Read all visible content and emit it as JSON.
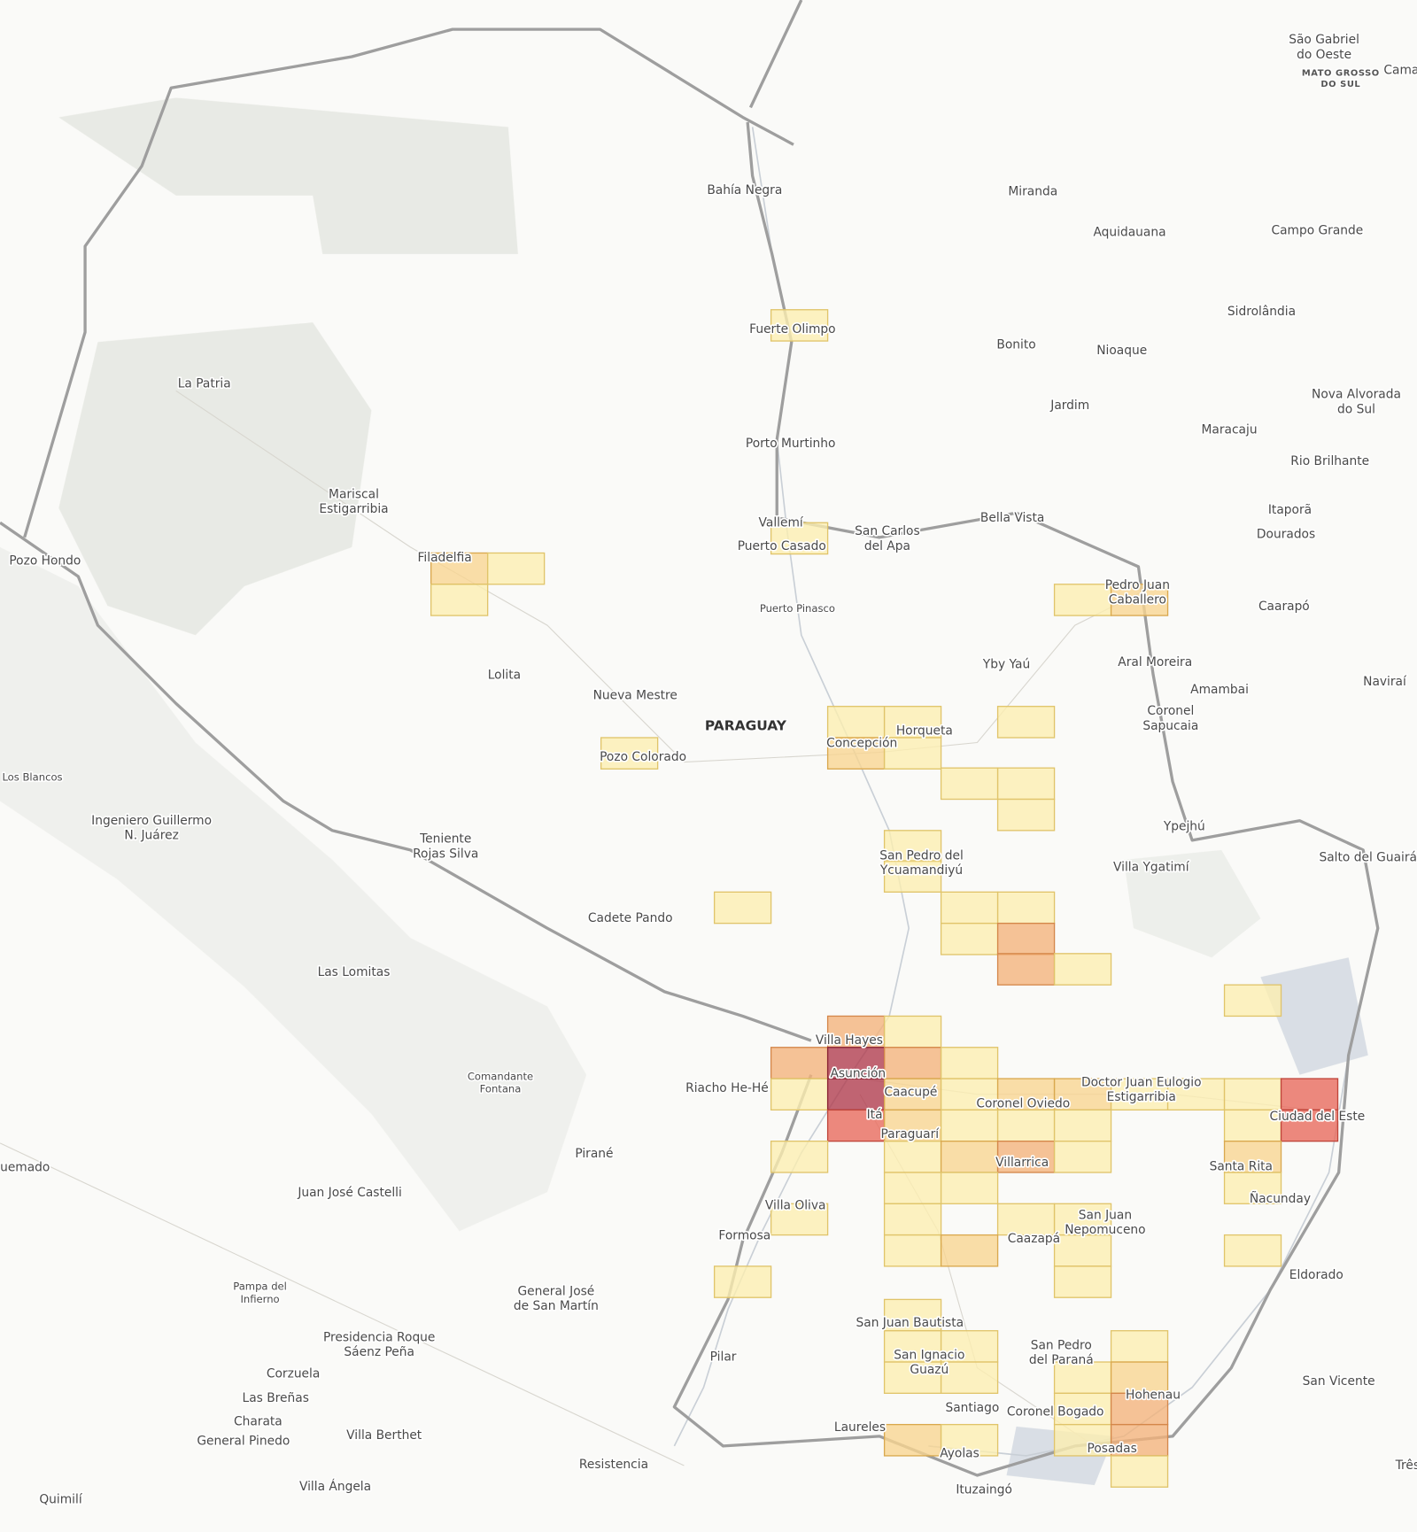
{
  "labels": [
    [
      "São Gabriel",
      "do Oeste"
    ],
    [
      "MATO GROSSO",
      "DO SUL"
    ],
    "Cama",
    "Bahía Negra",
    "Miranda",
    "Aquidauana",
    "Campo Grande",
    "Sidrolândia",
    "Fuerte Olimpo",
    "Bonito",
    "Nioaque",
    "La Patria",
    [
      "Nova Alvorada",
      "do Sul"
    ],
    "Jardim",
    "Maracaju",
    "Porto Murtinho",
    "Rio Brilhante",
    [
      "Mariscal",
      "Estigarribia"
    ],
    "Itaporã",
    "Vallemí",
    [
      "San Carlos",
      "del Apa"
    ],
    "Bella Vista",
    "Puerto Casado",
    "Dourados",
    "Pozo Hondo",
    "Filadelfia",
    [
      "Pedro Juan",
      "Caballero"
    ],
    "Caarapó",
    "Puerto Pinasco",
    "Yby Yaú",
    "Aral Moreira",
    "Lolita",
    "Amambai",
    "Naviraí",
    "Nueva Mestre",
    "PARAGUAY",
    [
      "Coronel",
      "Sapucaia"
    ],
    "Horqueta",
    "Concepción",
    "Pozo Colorado",
    "Los Blancos",
    [
      "Ingeniero Guillermo",
      "N. Juárez"
    ],
    "Ypejhú",
    [
      "Teniente",
      "Rojas Silva"
    ],
    [
      "San Pedro del",
      "Ycuamandiyú"
    ],
    "Salto del Guairá",
    "Villa Ygatimí",
    "Cadete Pando",
    "Las Lomitas",
    "Villa Hayes",
    [
      "Comandante",
      "Fontana"
    ],
    "Asunción",
    "Riacho He-Hé",
    [
      "Doctor Juan Eulogio",
      "Estigarribia"
    ],
    "Caacupé",
    "Coronel Oviedo",
    "Itá",
    "Ciudad del Este",
    "Paraguarí",
    "Pirané",
    "Villarrica",
    "Santa Rita",
    "uemado",
    "Juan José Castelli",
    "Ñacunday",
    "Villa Oliva",
    [
      "San Juan",
      "Nepomuceno"
    ],
    "Caazapá",
    "Formosa",
    "Eldorado",
    [
      "Pampa del",
      "Infierno"
    ],
    [
      "General José",
      "de San Martín"
    ],
    "San Juan Bautista",
    [
      "Presidencia Roque",
      "Sáenz Peña"
    ],
    [
      "San Pedro",
      "del Paraná"
    ],
    [
      "San Ignacio",
      "Guazú"
    ],
    "Pilar",
    "Corzuela",
    "San Vicente",
    "Hohenau",
    "Las Breñas",
    "Santiago",
    "Coronel Bogado",
    "Charata",
    "Laureles",
    "Villa Berthet",
    "General Pinedo",
    "Posadas",
    "Ayolas",
    "Resistencia",
    "Três",
    "Villa Ángela",
    "Quimilí",
    "Ituzaingó"
  ]
}
